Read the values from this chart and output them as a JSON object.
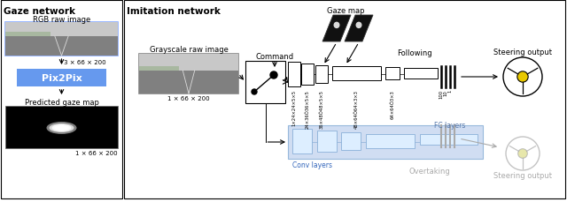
{
  "bg_color": "#ffffff",
  "left_panel_title": "Gaze network",
  "right_panel_title": "Imitation network",
  "rgb_label": "RGB raw image",
  "dim1": "3 × 66 × 200",
  "pix2pix_label": "Pix2Pix",
  "pred_gaze_label": "Predicted gaze map",
  "dim2": "1 × 66 × 200",
  "gray_label": "Grayscale raw image",
  "dim3": "1 × 66 × 200",
  "command_label": "Command",
  "gaze_map_label": "Gaze map",
  "following_label": "Following",
  "overtaking_label": "Overtaking",
  "steering_output_top": "Steering output",
  "steering_output_bot": "Steering output",
  "fc_layers_label": "FC layers",
  "conv_layers_label": "Conv layers",
  "conv_dims_top": [
    "1×24×24×5×5",
    "24×36Õ36×5×5",
    "36×48Õ48×5×5",
    "48×64Õ64×3×3",
    "64×64Õ3×3"
  ],
  "pix2pix_color": "#6699ee",
  "conv_bg_color": "#c8d8f0",
  "conv_border_color": "#8ab0d8"
}
